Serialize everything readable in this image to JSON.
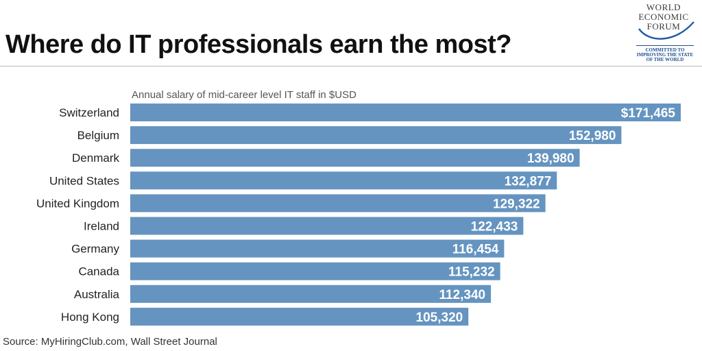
{
  "header": {
    "title": "Where do IT professionals earn the most?"
  },
  "logo": {
    "line1": "WORLD",
    "line2": "ECONOMIC",
    "line3": "FORUM",
    "tag1": "COMMITTED TO",
    "tag2": "IMPROVING THE STATE",
    "tag3": "OF THE WORLD"
  },
  "chart_data": {
    "type": "bar",
    "orientation": "horizontal",
    "subtitle": "Annual salary of mid-career level IT staff in $USD",
    "categories": [
      "Switzerland",
      "Belgium",
      "Denmark",
      "United States",
      "United Kingdom",
      "Ireland",
      "Germany",
      "Canada",
      "Australia",
      "Hong Kong"
    ],
    "values": [
      171465,
      152980,
      139980,
      132877,
      129322,
      122433,
      116454,
      115232,
      112340,
      105320
    ],
    "value_labels": [
      "$171,465",
      "152,980",
      "139,980",
      "132,877",
      "129,322",
      "122,433",
      "116,454",
      "115,232",
      "112,340",
      "105,320"
    ],
    "bar_color": "#6594c0",
    "label_color": "#ffffff",
    "grid": false,
    "legend": "none"
  },
  "footer": {
    "source": "Source: MyHiringClub.com, Wall Street Journal"
  }
}
